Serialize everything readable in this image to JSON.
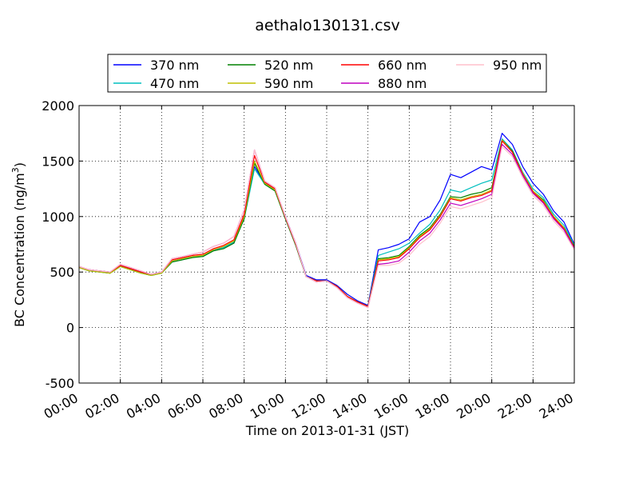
{
  "chart_data": {
    "type": "line",
    "title": "aethalo130131.csv",
    "xlabel": "Time on 2013-01-31 (JST)",
    "ylabel": "BC Concentration (ng/m",
    "ylabel_sup": "3",
    "ylabel_close": ")",
    "xlim": [
      "00:00",
      "24:00"
    ],
    "ylim": [
      -500,
      2000
    ],
    "grid": true,
    "legend_position": "top",
    "x_ticks": [
      "00:00",
      "02:00",
      "04:00",
      "06:00",
      "08:00",
      "10:00",
      "12:00",
      "14:00",
      "16:00",
      "18:00",
      "20:00",
      "22:00",
      "24:00"
    ],
    "y_ticks": [
      "2000",
      "1500",
      "1000",
      "500",
      "0",
      "-500"
    ],
    "y_tick_values": [
      2000,
      1500,
      1000,
      500,
      0,
      -500
    ],
    "x": [
      "00:00",
      "00:30",
      "01:00",
      "01:30",
      "02:00",
      "02:30",
      "03:00",
      "03:30",
      "04:00",
      "04:30",
      "05:00",
      "05:30",
      "06:00",
      "06:30",
      "07:00",
      "07:30",
      "08:00",
      "08:30",
      "09:00",
      "09:30",
      "10:00",
      "10:30",
      "11:00",
      "11:30",
      "12:00",
      "12:30",
      "13:00",
      "13:30",
      "14:00",
      "14:30",
      "15:00",
      "15:30",
      "16:00",
      "16:30",
      "17:00",
      "17:30",
      "18:00",
      "18:30",
      "19:00",
      "19:30",
      "20:00",
      "20:30",
      "21:00",
      "21:30",
      "22:00",
      "22:30",
      "23:00",
      "23:30",
      "24:00"
    ],
    "series": [
      {
        "name": "370 nm",
        "color": "#0000ff",
        "values": [
          540,
          520,
          510,
          500,
          560,
          530,
          500,
          480,
          500,
          600,
          620,
          640,
          640,
          700,
          720,
          760,
          1000,
          1450,
          1300,
          1250,
          1000,
          760,
          470,
          430,
          430,
          380,
          300,
          240,
          200,
          700,
          720,
          750,
          800,
          950,
          1000,
          1150,
          1380,
          1350,
          1400,
          1450,
          1420,
          1750,
          1650,
          1450,
          1300,
          1200,
          1050,
          950,
          750
        ]
      },
      {
        "name": "470 nm",
        "color": "#00bfbf",
        "values": [
          540,
          510,
          500,
          490,
          550,
          520,
          490,
          470,
          490,
          590,
          610,
          640,
          640,
          690,
          720,
          770,
          980,
          1430,
          1290,
          1230,
          980,
          740,
          460,
          420,
          420,
          370,
          280,
          230,
          190,
          650,
          680,
          710,
          760,
          850,
          930,
          1060,
          1240,
          1220,
          1260,
          1300,
          1330,
          1700,
          1600,
          1400,
          1250,
          1170,
          1020,
          920,
          740
        ]
      },
      {
        "name": "520 nm",
        "color": "#008000",
        "values": [
          540,
          510,
          500,
          490,
          550,
          520,
          490,
          470,
          490,
          590,
          610,
          630,
          640,
          690,
          710,
          760,
          980,
          1480,
          1290,
          1230,
          980,
          740,
          460,
          420,
          420,
          370,
          280,
          230,
          190,
          620,
          630,
          650,
          730,
          830,
          900,
          1020,
          1180,
          1170,
          1200,
          1220,
          1260,
          1690,
          1590,
          1390,
          1230,
          1150,
          1000,
          900,
          730
        ]
      },
      {
        "name": "590 nm",
        "color": "#bfbf00",
        "values": [
          540,
          510,
          500,
          490,
          550,
          520,
          490,
          470,
          490,
          600,
          620,
          640,
          650,
          700,
          730,
          780,
          1000,
          1500,
          1300,
          1240,
          990,
          750,
          460,
          420,
          420,
          370,
          280,
          230,
          190,
          610,
          620,
          640,
          720,
          820,
          890,
          1010,
          1170,
          1150,
          1180,
          1200,
          1240,
          1690,
          1580,
          1390,
          1230,
          1140,
          1000,
          900,
          720
        ]
      },
      {
        "name": "660 nm",
        "color": "#ff0000",
        "values": [
          550,
          520,
          510,
          500,
          560,
          530,
          500,
          480,
          500,
          610,
          630,
          650,
          660,
          710,
          740,
          790,
          1020,
          1550,
          1310,
          1250,
          990,
          750,
          460,
          420,
          420,
          370,
          280,
          230,
          190,
          600,
          610,
          630,
          710,
          810,
          880,
          1000,
          1160,
          1140,
          1170,
          1190,
          1230,
          1680,
          1580,
          1380,
          1220,
          1130,
          990,
          890,
          720
        ]
      },
      {
        "name": "880 nm",
        "color": "#bf00bf",
        "values": [
          550,
          520,
          510,
          500,
          570,
          540,
          510,
          480,
          500,
          620,
          640,
          660,
          680,
          730,
          760,
          820,
          1060,
          1600,
          1320,
          1260,
          1000,
          760,
          460,
          410,
          420,
          360,
          270,
          220,
          180,
          570,
          580,
          600,
          680,
          780,
          850,
          970,
          1120,
          1100,
          1130,
          1160,
          1200,
          1650,
          1560,
          1370,
          1210,
          1120,
          980,
          880,
          710
        ]
      },
      {
        "name": "950 nm",
        "color": "#ffc0cb",
        "values": [
          550,
          520,
          510,
          500,
          570,
          540,
          510,
          480,
          500,
          620,
          640,
          660,
          680,
          730,
          760,
          820,
          1060,
          1600,
          1320,
          1260,
          1000,
          760,
          460,
          410,
          420,
          360,
          270,
          220,
          180,
          560,
          560,
          580,
          650,
          750,
          820,
          940,
          1090,
          1070,
          1100,
          1130,
          1170,
          1630,
          1540,
          1350,
          1190,
          1100,
          960,
          860,
          700
        ]
      }
    ]
  }
}
